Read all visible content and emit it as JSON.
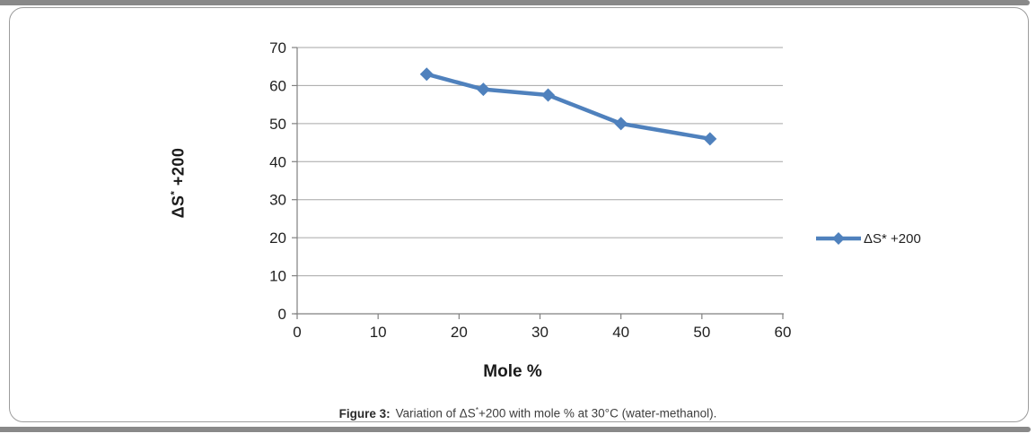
{
  "figure": {
    "caption": {
      "label": "Figure 3:",
      "text_pre": "Variation of ΔS",
      "sup": "*",
      "text_post": "+200 with mole % at 30°C (water-methanol)."
    },
    "accent_bar_color": "#898989",
    "frame_border_color": "#9c9c9c"
  },
  "chart_data": {
    "type": "line",
    "title": "",
    "xlabel": "Mole %",
    "ylabel": "ΔS* +200",
    "ylabel_parts": {
      "pre": "ΔS",
      "sup": "*",
      "post": " +200"
    },
    "x": [
      16,
      23,
      31,
      40,
      51
    ],
    "series": [
      {
        "name": "ΔS* +200",
        "values": [
          63,
          59,
          57.5,
          50,
          46
        ]
      }
    ],
    "legend": [
      {
        "label": "ΔS* +200"
      }
    ],
    "xlim": [
      0,
      60
    ],
    "ylim": [
      0,
      70
    ],
    "xtick_step": 10,
    "ytick_step": 10,
    "grid": "horizontal-major",
    "legend_position": "right",
    "marker": "diamond",
    "colors": {
      "series": "#4F81BD",
      "gridline": "#A6A6A6",
      "axis": "#808080",
      "tick_text": "#1f1f1f"
    }
  }
}
